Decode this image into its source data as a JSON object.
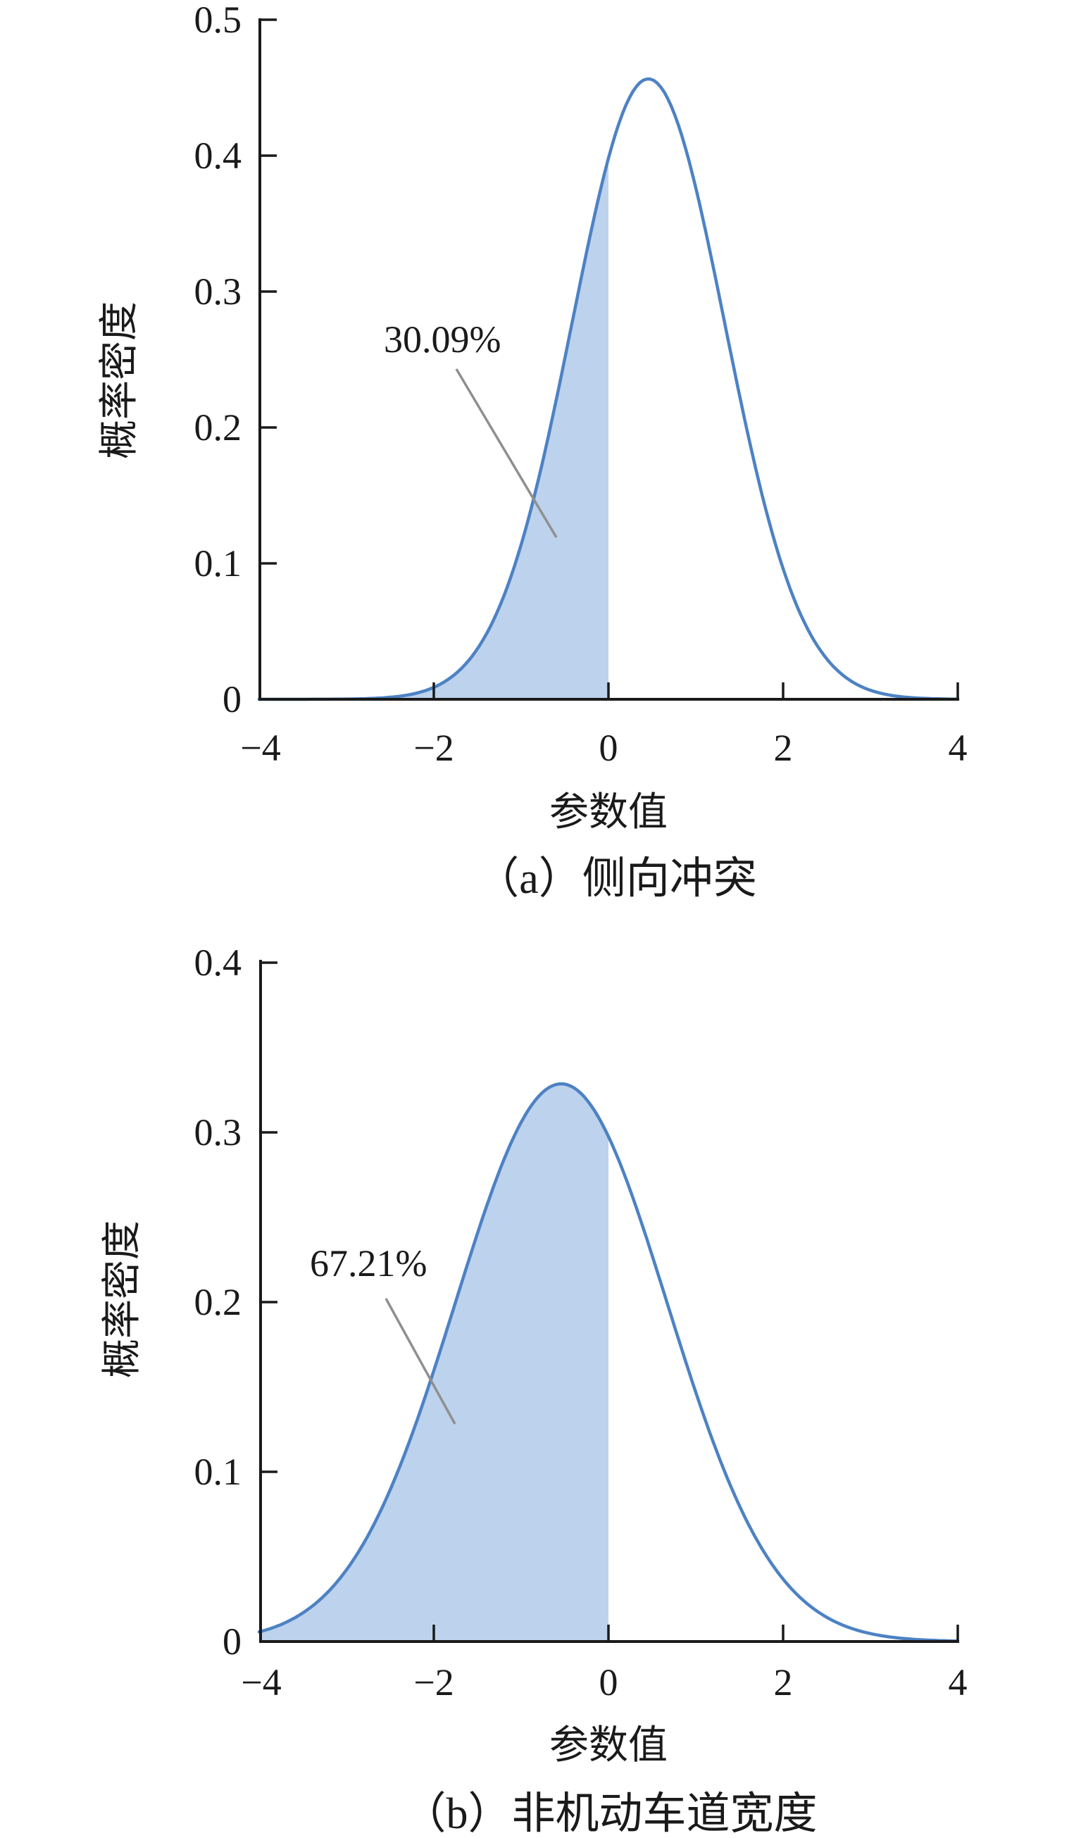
{
  "chart_data": [
    {
      "type": "area",
      "subplot_label": "（a）侧向冲突",
      "xlabel": "参数值",
      "ylabel": "概率密度",
      "xlim": [
        -4,
        4
      ],
      "ylim": [
        0,
        0.5
      ],
      "x_ticks": [
        -4,
        -2,
        0,
        2,
        4
      ],
      "x_tick_labels": [
        "−4",
        "−2",
        "0",
        "2",
        "4"
      ],
      "y_ticks": [
        0,
        0.1,
        0.2,
        0.3,
        0.4,
        0.5
      ],
      "y_tick_labels": [
        "0",
        "0.1",
        "0.2",
        "0.3",
        "0.4",
        "0.5"
      ],
      "distribution": "normal",
      "mu": 0.457,
      "sigma": 0.874,
      "peak_density": 0.456,
      "shaded_region": {
        "from": -4,
        "to": 0,
        "area_fraction": 0.3009,
        "label": "30.09%"
      },
      "grid": false,
      "curve_color": "#4d82c4",
      "fill_color": "#bdd2ec",
      "leader_color": "#8f8f8f"
    },
    {
      "type": "area",
      "subplot_label": "（b）非机动车道宽度",
      "xlabel": "参数值",
      "ylabel": "概率密度",
      "xlim": [
        -4,
        4
      ],
      "ylim": [
        0,
        0.4
      ],
      "x_ticks": [
        -4,
        -2,
        0,
        2,
        4
      ],
      "x_tick_labels": [
        "−4",
        "−2",
        "0",
        "2",
        "4"
      ],
      "y_ticks": [
        0,
        0.1,
        0.2,
        0.3,
        0.4
      ],
      "y_tick_labels": [
        "0",
        "0.1",
        "0.2",
        "0.3",
        "0.4"
      ],
      "distribution": "normal",
      "mu": -0.541,
      "sigma": 1.214,
      "peak_density": 0.329,
      "shaded_region": {
        "from": -4,
        "to": 0,
        "area_fraction": 0.6721,
        "label": "67.21%"
      },
      "grid": false,
      "curve_color": "#4d82c4",
      "fill_color": "#bdd2ec",
      "leader_color": "#8f8f8f"
    }
  ]
}
